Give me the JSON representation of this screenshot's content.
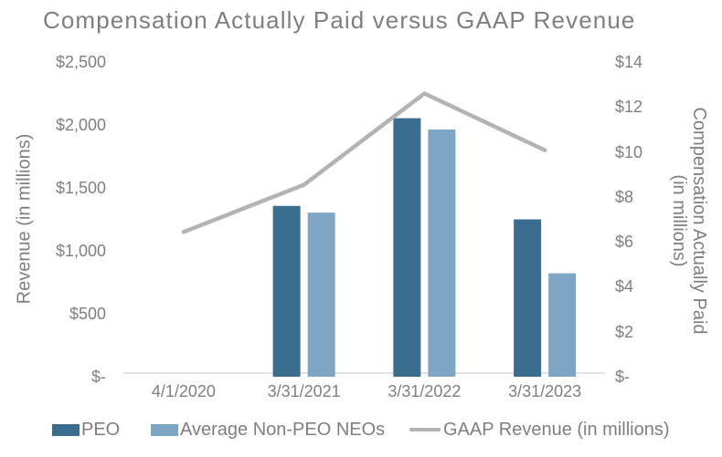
{
  "chart_data": {
    "type": "bar",
    "subtype": "combo-bar-line-dual-axis",
    "title": "Compensation Actually Paid versus GAAP Revenue",
    "categories": [
      "4/1/2020",
      "3/31/2021",
      "3/31/2022",
      "3/31/2023"
    ],
    "series": [
      {
        "name": "PEO",
        "type": "bar",
        "axis": "right",
        "color": "#3A6D8E",
        "values": [
          null,
          7.6,
          11.5,
          7.0
        ]
      },
      {
        "name": "Average Non-PEO NEOs",
        "type": "bar",
        "axis": "right",
        "color": "#7EA6C4",
        "values": [
          null,
          7.3,
          11.0,
          4.6
        ]
      },
      {
        "name": "GAAP Revenue (in millions)",
        "type": "line",
        "axis": "left",
        "color": "#B3B3B3",
        "values": [
          1150,
          1525,
          2250,
          1800
        ]
      }
    ],
    "left_axis": {
      "title": "Revenue (in millions)",
      "range": [
        0,
        2500
      ],
      "tick_step": 500,
      "ticks": [
        "$2,500",
        "$2,000",
        "$1,500",
        "$1,000",
        "$500",
        "$-"
      ]
    },
    "right_axis": {
      "title_line1": "Compensation Actually Paid",
      "title_line2": "(in millions)",
      "range": [
        0,
        14
      ],
      "tick_step": 2,
      "ticks": [
        "$14",
        "$12",
        "$10",
        "$8",
        "$6",
        "$4",
        "$2",
        "$-"
      ]
    },
    "legend_position": "bottom",
    "grid": "off"
  },
  "colors": {
    "text": "#7F7F7F",
    "axis_line": "#D9D9D9",
    "background": "#FFFFFF"
  }
}
